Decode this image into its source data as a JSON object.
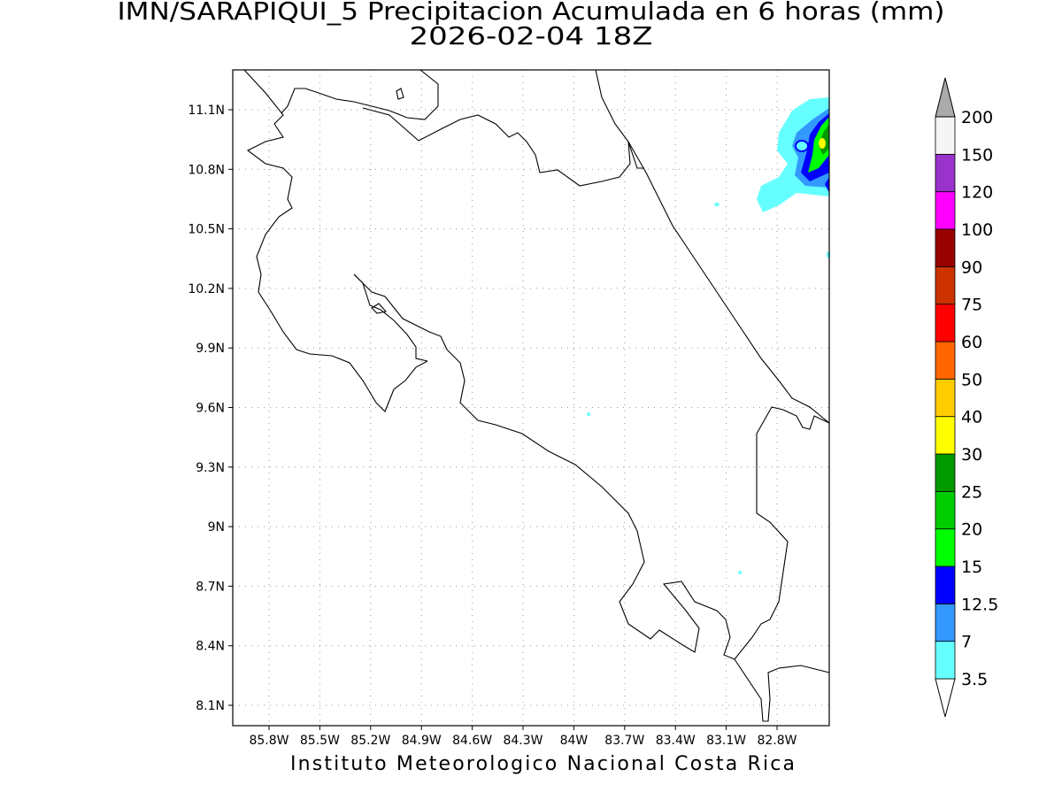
{
  "title": [
    "IMN/SARAPIQUI_5 Precipitacion Acumulada en 6 horas (mm)",
    "2026-02-04 18Z"
  ],
  "map": {
    "lat_labels": [
      "11.1N",
      "10.8N",
      "10.5N",
      "10.2N",
      "9.9N",
      "9.6N",
      "9.3N",
      "9N",
      "8.7N",
      "8.4N",
      "8.1N"
    ],
    "lon_labels": [
      "85.8W",
      "85.5W",
      "85.2W",
      "84.9W",
      "84.6W",
      "84.3W",
      "84W",
      "83.7W",
      "83.4W",
      "83.1W",
      "82.8W"
    ]
  },
  "colorbar": {
    "levels": [
      3.5,
      7,
      12.5,
      15,
      20,
      25,
      30,
      40,
      50,
      60,
      75,
      90,
      100,
      120,
      150,
      200
    ],
    "colors": [
      "#ffffff",
      "#66ffff",
      "#3399ff",
      "#0000ff",
      "#00ff00",
      "#00cc00",
      "#009900",
      "#ffff00",
      "#ffcc00",
      "#ff6600",
      "#ff0000",
      "#cc3300",
      "#990000",
      "#ff00ff",
      "#9933cc",
      "#f5f5f5",
      "#aaaaaa"
    ]
  },
  "footer": "Instituto Meteorologico Nacional Costa Rica"
}
